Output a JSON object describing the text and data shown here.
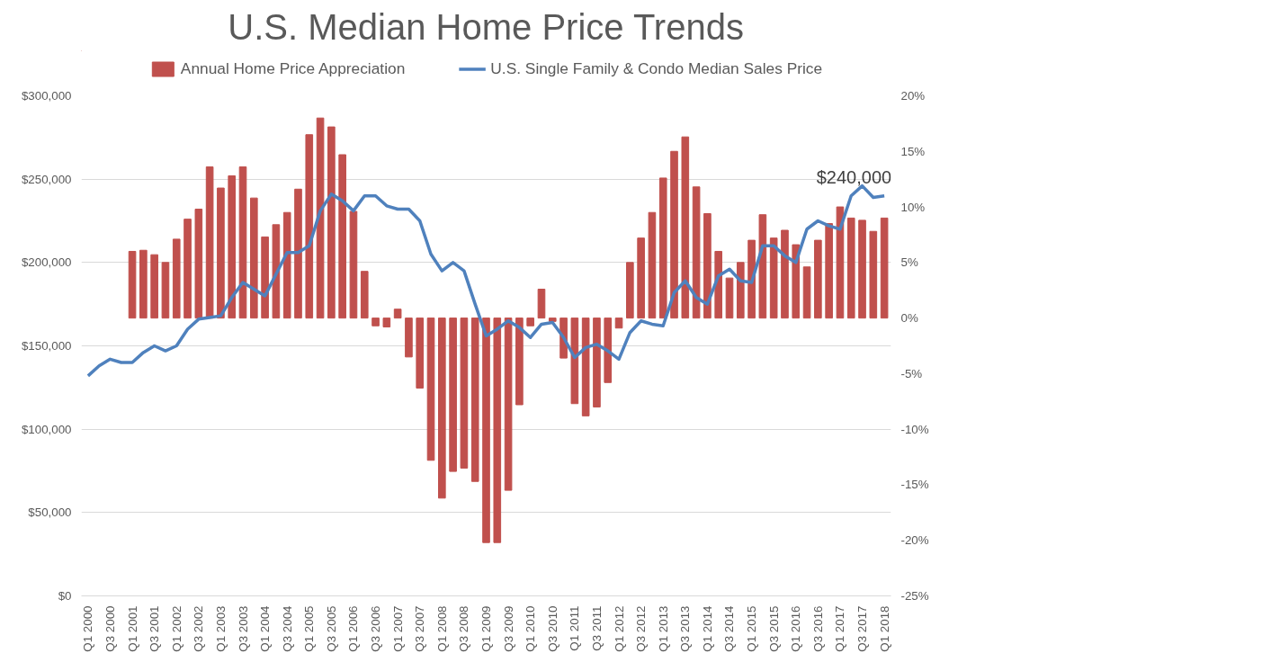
{
  "chart_data": {
    "type": "bar",
    "title": "U.S. Median Home Price Trends",
    "categories": [
      "Q1 2000",
      null,
      "Q3 2000",
      null,
      "Q1 2001",
      null,
      "Q3 2001",
      null,
      "Q1 2002",
      null,
      "Q3 2002",
      null,
      "Q1 2003",
      null,
      "Q3 2003",
      null,
      "Q1 2004",
      null,
      "Q3 2004",
      null,
      "Q1 2005",
      null,
      "Q3 2005",
      null,
      "Q1 2006",
      null,
      "Q3 2006",
      null,
      "Q1 2007",
      null,
      "Q3 2007",
      null,
      "Q1 2008",
      null,
      "Q3 2008",
      null,
      "Q1 2009",
      null,
      "Q3 2009",
      null,
      "Q1 2010",
      null,
      "Q3 2010",
      null,
      "Q1 2011",
      null,
      "Q3 2011",
      null,
      "Q1 2012",
      null,
      "Q3 2012",
      null,
      "Q1 2013",
      null,
      "Q3 2013",
      null,
      "Q1 2014",
      null,
      "Q3 2014",
      null,
      "Q1 2015",
      null,
      "Q3 2015",
      null,
      "Q1 2016",
      null,
      "Q3 2016",
      null,
      "Q1 2017",
      null,
      "Q3 2017",
      null,
      "Q1 2018"
    ],
    "series": [
      {
        "name": "Annual Home Price Appreciation",
        "type": "bar",
        "axis": "y2",
        "color": "#c0504d",
        "values": [
          null,
          null,
          null,
          null,
          6.0,
          6.1,
          5.7,
          5.0,
          7.1,
          8.9,
          9.8,
          13.6,
          11.7,
          12.8,
          13.6,
          10.8,
          7.3,
          8.4,
          9.5,
          11.6,
          16.5,
          18.0,
          17.2,
          14.7,
          9.6,
          4.2,
          -0.7,
          -0.8,
          0.8,
          -3.5,
          -6.3,
          -12.8,
          -16.2,
          -13.8,
          -13.5,
          -14.7,
          -20.2,
          -20.2,
          -15.5,
          -7.8,
          -0.7,
          2.6,
          -0.3,
          -3.6,
          -7.7,
          -8.8,
          -8.0,
          -5.8,
          -0.9,
          5.0,
          7.2,
          9.5,
          12.6,
          15.0,
          16.3,
          11.8,
          9.4,
          6.0,
          3.6,
          5.0,
          7.0,
          9.3,
          7.2,
          7.9,
          6.6,
          4.6,
          7.0,
          8.5,
          10.0,
          9.0,
          8.8,
          7.8,
          9.0
        ]
      },
      {
        "name": "U.S. Single Family & Condo Median Sales Price",
        "type": "line",
        "color": "#4f81bd",
        "values": [
          132000,
          138000,
          142000,
          140000,
          140000,
          146000,
          150000,
          147000,
          150000,
          160000,
          166000,
          167000,
          168000,
          179000,
          188000,
          184000,
          180000,
          193000,
          206000,
          206000,
          210000,
          231000,
          241000,
          237000,
          231000,
          240000,
          240000,
          234000,
          232000,
          232000,
          225000,
          205000,
          195000,
          200000,
          195000,
          175000,
          156000,
          160000,
          165000,
          161000,
          155000,
          163000,
          164000,
          155000,
          143000,
          149000,
          151000,
          147000,
          142000,
          158000,
          165000,
          163000,
          162000,
          182000,
          189000,
          179000,
          175000,
          192000,
          196000,
          189000,
          188000,
          210000,
          210000,
          204000,
          200000,
          220000,
          225000,
          222000,
          220000,
          240000,
          246000,
          239000,
          240000
        ]
      }
    ],
    "ylim": [
      0,
      300000
    ],
    "yticks": [
      {
        "value": 0,
        "label": "$0"
      },
      {
        "value": 50000,
        "label": "$50,000"
      },
      {
        "value": 100000,
        "label": "$100,000"
      },
      {
        "value": 150000,
        "label": "$150,000"
      },
      {
        "value": 200000,
        "label": "$200,000"
      },
      {
        "value": 250000,
        "label": "$250,000"
      },
      {
        "value": 300000,
        "label": "$300,000"
      }
    ],
    "y2lim": [
      -25,
      20
    ],
    "y2ticks": [
      {
        "value": -25,
        "label": "-25%"
      },
      {
        "value": -20,
        "label": "-20%"
      },
      {
        "value": -15,
        "label": "-15%"
      },
      {
        "value": -10,
        "label": "-10%"
      },
      {
        "value": -5,
        "label": "-5%"
      },
      {
        "value": 0,
        "label": "0%"
      },
      {
        "value": 5,
        "label": "5%"
      },
      {
        "value": 10,
        "label": "10%"
      },
      {
        "value": 15,
        "label": "15%"
      },
      {
        "value": 20,
        "label": "20%"
      }
    ],
    "annotations": [
      {
        "text": "$240,000",
        "x": "Q1 2018",
        "y": 240000
      }
    ],
    "grid": "y",
    "legend": "top",
    "marker": "none",
    "line_style": "solid"
  }
}
